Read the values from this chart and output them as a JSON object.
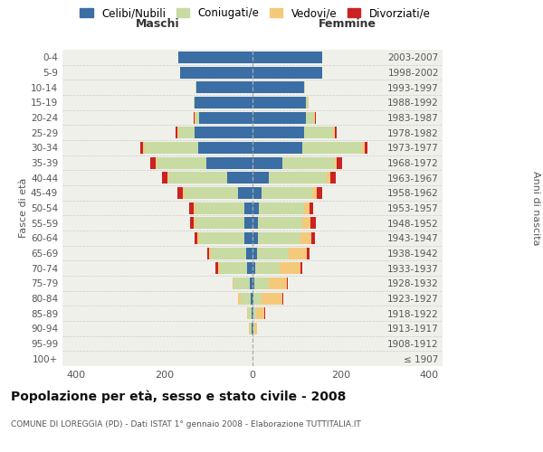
{
  "age_groups": [
    "100+",
    "95-99",
    "90-94",
    "85-89",
    "80-84",
    "75-79",
    "70-74",
    "65-69",
    "60-64",
    "55-59",
    "50-54",
    "45-49",
    "40-44",
    "35-39",
    "30-34",
    "25-29",
    "20-24",
    "15-19",
    "10-14",
    "5-9",
    "0-4"
  ],
  "birth_years": [
    "≤ 1907",
    "1908-1912",
    "1913-1917",
    "1918-1922",
    "1923-1927",
    "1928-1932",
    "1933-1937",
    "1938-1942",
    "1943-1947",
    "1948-1952",
    "1953-1957",
    "1958-1962",
    "1963-1967",
    "1968-1972",
    "1973-1977",
    "1978-1982",
    "1983-1987",
    "1988-1992",
    "1993-1997",
    "1998-2002",
    "2003-2007"
  ],
  "maschi_celibi": [
    1,
    1,
    3,
    2,
    5,
    7,
    12,
    15,
    18,
    18,
    18,
    32,
    58,
    105,
    122,
    132,
    120,
    132,
    127,
    163,
    168
  ],
  "maschi_coniugati": [
    0,
    0,
    4,
    8,
    22,
    35,
    62,
    80,
    102,
    112,
    112,
    122,
    132,
    112,
    122,
    36,
    10,
    2,
    1,
    1,
    0
  ],
  "maschi_vedovi": [
    0,
    0,
    2,
    3,
    5,
    3,
    4,
    3,
    4,
    4,
    4,
    4,
    3,
    2,
    3,
    2,
    1,
    0,
    0,
    0,
    0
  ],
  "maschi_divorziati": [
    0,
    0,
    0,
    0,
    0,
    1,
    5,
    5,
    7,
    8,
    10,
    12,
    12,
    12,
    6,
    4,
    2,
    0,
    0,
    0,
    0
  ],
  "femmine_nubili": [
    1,
    1,
    3,
    2,
    3,
    5,
    6,
    10,
    12,
    12,
    14,
    20,
    36,
    68,
    112,
    116,
    120,
    120,
    116,
    158,
    158
  ],
  "femmine_coniugate": [
    0,
    0,
    2,
    6,
    18,
    32,
    56,
    72,
    96,
    100,
    102,
    116,
    132,
    118,
    136,
    66,
    20,
    5,
    2,
    0,
    0
  ],
  "femmine_vedove": [
    0,
    0,
    5,
    18,
    46,
    40,
    46,
    40,
    26,
    20,
    12,
    10,
    8,
    4,
    5,
    4,
    2,
    1,
    0,
    0,
    0
  ],
  "femmine_divorziate": [
    0,
    0,
    0,
    2,
    2,
    2,
    5,
    8,
    8,
    12,
    10,
    12,
    12,
    12,
    8,
    4,
    2,
    0,
    0,
    0,
    0
  ],
  "colors_celibi": "#3a6ea5",
  "colors_coniugati": "#c8dba2",
  "colors_vedovi": "#f5c97a",
  "colors_divorziati": "#cc2222",
  "xlim": 430,
  "bg_color": "#f0f0eb",
  "grid_color": "#cccccc",
  "title": "Popolazione per età, sesso e stato civile - 2008",
  "subtitle": "COMUNE DI LOREGGIA (PD) - Dati ISTAT 1° gennaio 2008 - Elaborazione TUTTITALIA.IT",
  "legend_labels": [
    "Celibi/Nubili",
    "Coniugati/e",
    "Vedovi/e",
    "Divorziati/e"
  ],
  "label_maschi": "Maschi",
  "label_femmine": "Femmine",
  "label_fasce": "Fasce di età",
  "label_anni": "Anni di nascita"
}
